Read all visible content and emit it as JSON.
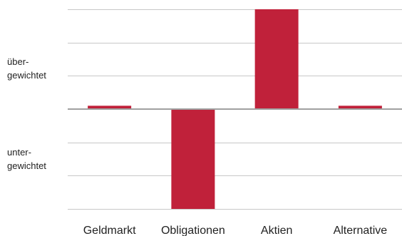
{
  "chart_data": {
    "type": "bar",
    "categories": [
      "Geldmarkt",
      "Obligationen",
      "Aktien",
      "Alternative"
    ],
    "values": [
      0.1,
      -3.0,
      3.0,
      0.1
    ],
    "ylim": [
      -3,
      3
    ],
    "grid": true,
    "y_labels": {
      "positive": [
        "über-",
        "gewichtet"
      ],
      "negative": [
        "unter-",
        "gewichtet"
      ]
    },
    "bar_color": "#c0213a",
    "gridline_color": "#c8c8c8",
    "zero_line_color": "#a0a0a0"
  }
}
